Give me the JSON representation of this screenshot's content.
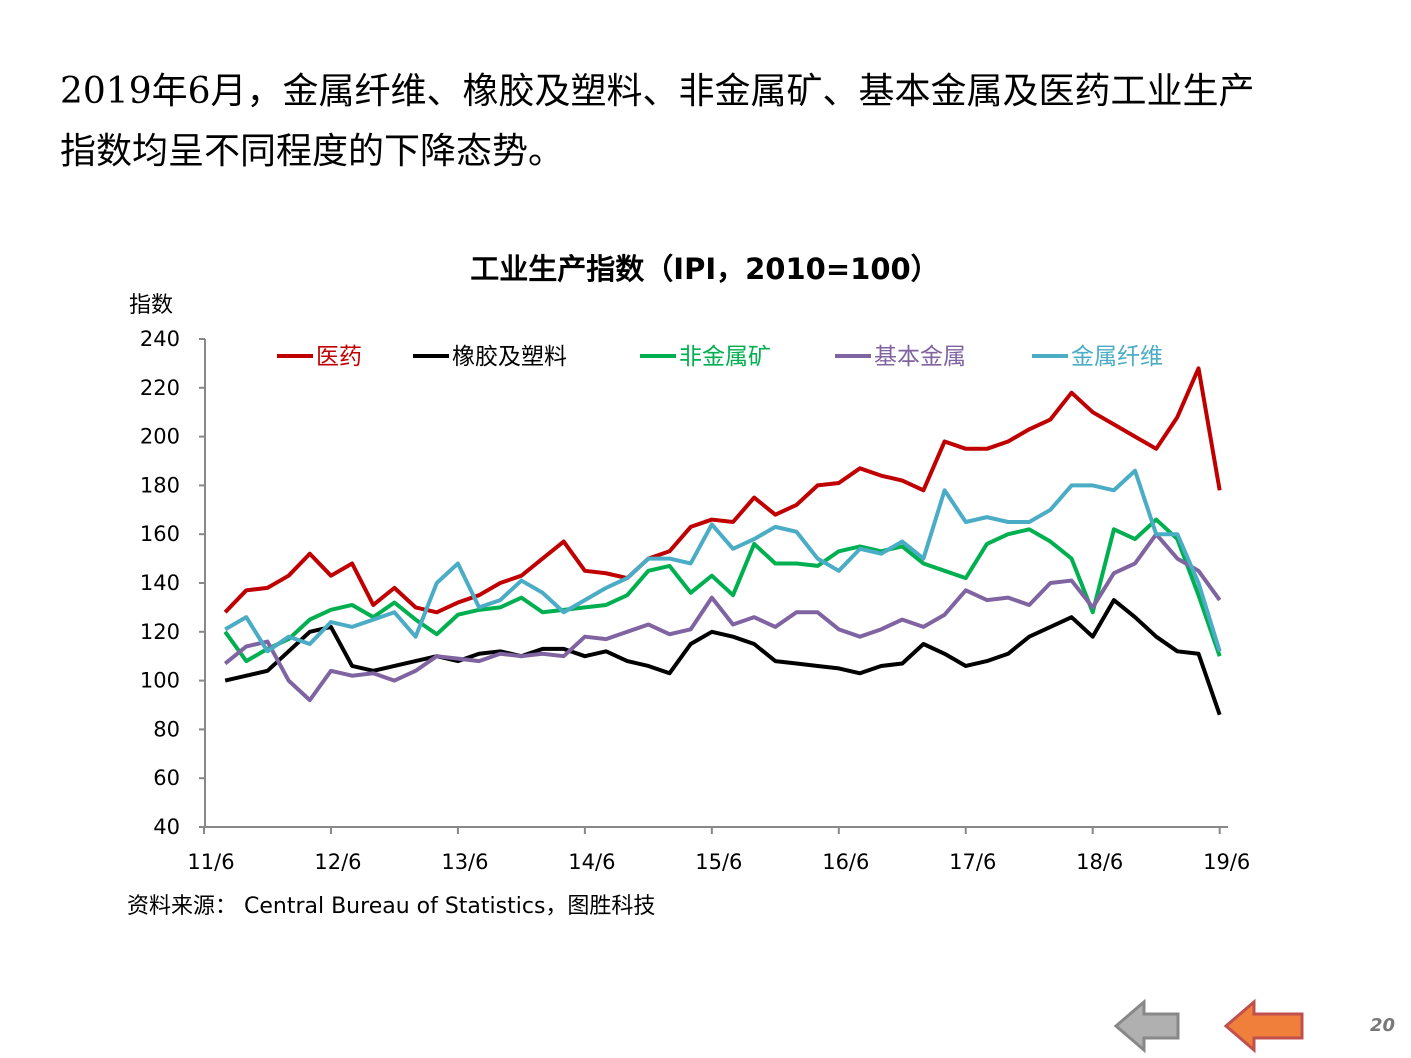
{
  "heading": {
    "line1": "2019年6月，金属纤维、橡胶及塑料、非金属矿、基本金属及医药工业生产",
    "line2": "指数均呈不同程度的下降态势。"
  },
  "source": "资料来源： Central Bureau of Statistics，图胜科技",
  "page_number": "20",
  "nav": {
    "prev_color": "#b0b0b0",
    "next_color": "#f07f3c"
  },
  "chart_data": {
    "type": "line",
    "title": "工业生产指数（IPI，2010=100）",
    "ylabel": "指数",
    "xlabel": "",
    "ylim": [
      40,
      240
    ],
    "yticks": [
      40,
      60,
      80,
      100,
      120,
      140,
      160,
      180,
      200,
      220,
      240
    ],
    "xticks": [
      {
        "m": 0,
        "label": "11/6"
      },
      {
        "m": 12,
        "label": "12/6"
      },
      {
        "m": 24,
        "label": "13/6"
      },
      {
        "m": 36,
        "label": "14/6"
      },
      {
        "m": 48,
        "label": "15/6"
      },
      {
        "m": 60,
        "label": "16/6"
      },
      {
        "m": 72,
        "label": "17/6"
      },
      {
        "m": 84,
        "label": "18/6"
      },
      {
        "m": 96,
        "label": "19/6"
      }
    ],
    "x_unit": "months since 2011/6",
    "x": [
      2,
      4,
      6,
      8,
      10,
      12,
      14,
      16,
      18,
      20,
      22,
      24,
      26,
      28,
      30,
      32,
      34,
      36,
      38,
      40,
      42,
      44,
      46,
      48,
      50,
      52,
      54,
      56,
      58,
      60,
      62,
      64,
      66,
      68,
      70,
      72,
      74,
      76,
      78,
      80,
      82,
      84,
      86,
      88,
      90,
      92,
      94,
      96
    ],
    "legend_position": "top",
    "grid": false,
    "series": [
      {
        "name": "医药",
        "color": "#c00000",
        "values": [
          128,
          137,
          138,
          143,
          152,
          143,
          148,
          131,
          138,
          130,
          128,
          132,
          135,
          140,
          143,
          150,
          157,
          145,
          144,
          142,
          150,
          153,
          163,
          166,
          165,
          175,
          168,
          172,
          180,
          181,
          187,
          184,
          182,
          178,
          198,
          195,
          195,
          198,
          203,
          207,
          218,
          210,
          205,
          200,
          195,
          208,
          228,
          178
        ]
      },
      {
        "name": "橡胶及塑料",
        "color": "#000000",
        "values": [
          100,
          102,
          104,
          112,
          120,
          122,
          106,
          104,
          106,
          108,
          110,
          108,
          111,
          112,
          110,
          113,
          113,
          110,
          112,
          108,
          106,
          103,
          115,
          120,
          118,
          115,
          108,
          107,
          106,
          105,
          103,
          106,
          107,
          115,
          111,
          106,
          108,
          111,
          118,
          122,
          126,
          118,
          133,
          126,
          118,
          112,
          111,
          86
        ]
      },
      {
        "name": "非金属矿",
        "color": "#00b050",
        "values": [
          120,
          108,
          113,
          117,
          125,
          129,
          131,
          126,
          132,
          125,
          119,
          127,
          129,
          130,
          134,
          128,
          129,
          130,
          131,
          135,
          145,
          147,
          136,
          143,
          135,
          156,
          148,
          148,
          147,
          153,
          155,
          153,
          155,
          148,
          145,
          142,
          156,
          160,
          162,
          157,
          150,
          128,
          162,
          158,
          166,
          158,
          135,
          110
        ]
      },
      {
        "name": "基本金属",
        "color": "#8064a2",
        "values": [
          107,
          114,
          116,
          100,
          92,
          104,
          102,
          103,
          100,
          104,
          110,
          109,
          108,
          111,
          110,
          111,
          110,
          118,
          117,
          120,
          123,
          119,
          121,
          134,
          123,
          126,
          122,
          128,
          128,
          121,
          118,
          121,
          125,
          122,
          127,
          137,
          133,
          134,
          131,
          140,
          141,
          130,
          144,
          148,
          160,
          150,
          145,
          133
        ]
      },
      {
        "name": "金属纤维",
        "color": "#4bacc6",
        "values": [
          121,
          126,
          112,
          118,
          115,
          124,
          122,
          125,
          128,
          118,
          140,
          148,
          130,
          133,
          141,
          136,
          128,
          133,
          138,
          142,
          150,
          150,
          148,
          164,
          154,
          158,
          163,
          161,
          150,
          145,
          154,
          152,
          157,
          150,
          178,
          165,
          167,
          165,
          165,
          170,
          180,
          180,
          178,
          186,
          160,
          160,
          140,
          112
        ]
      }
    ]
  }
}
